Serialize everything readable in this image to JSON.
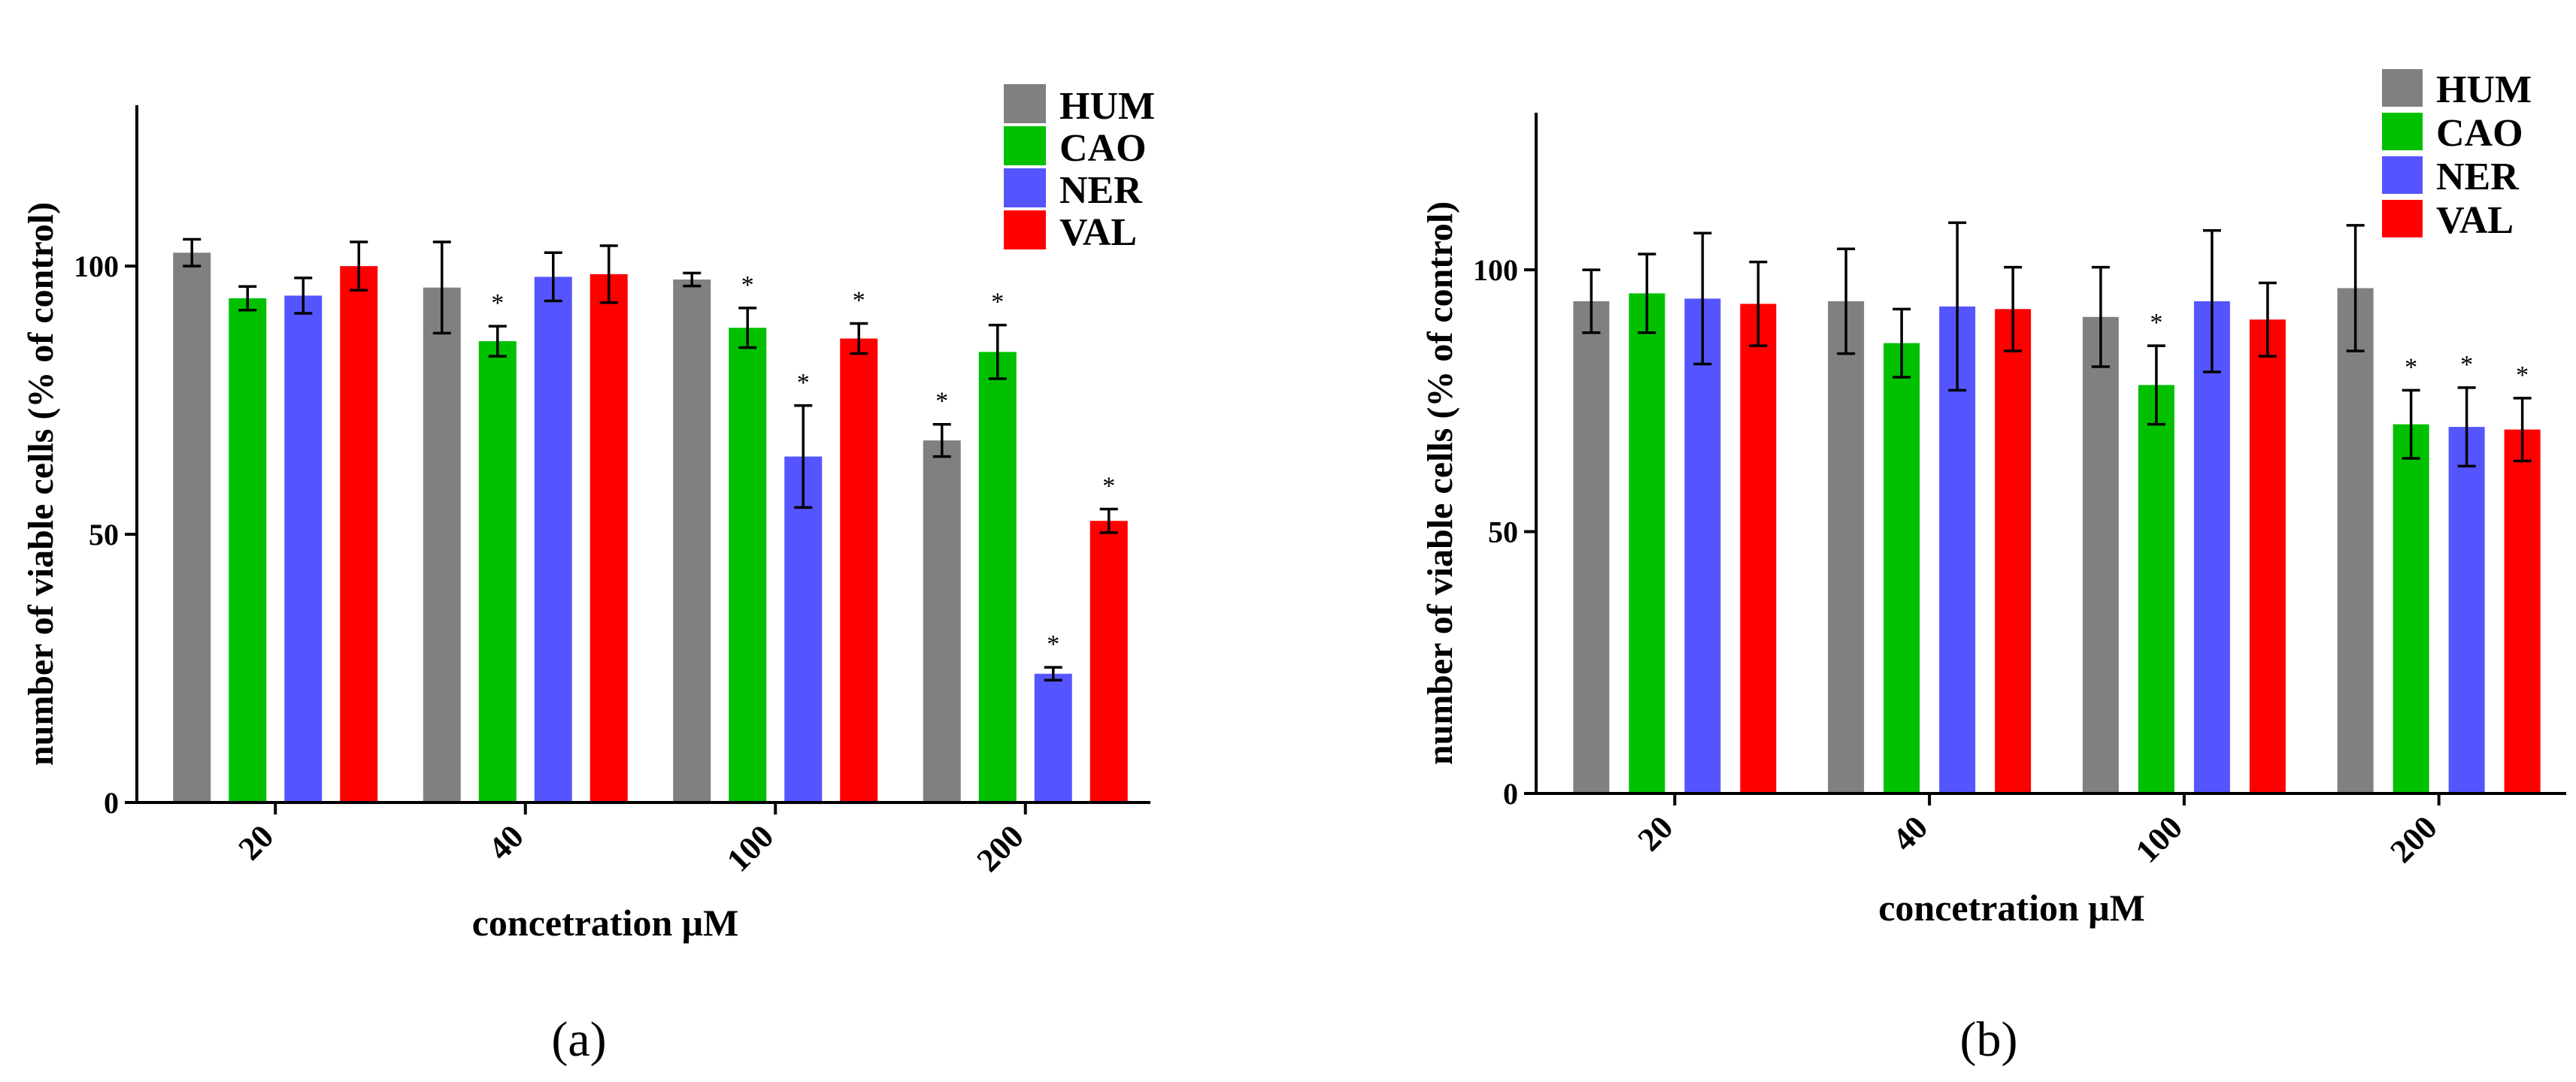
{
  "figure": {
    "colors": {
      "HUM": "#808080",
      "CAO": "#00c000",
      "NER": "#5555ff",
      "VAL": "#ff0000",
      "axis": "#000000"
    }
  },
  "chart_data": [
    {
      "panel_label": "(a)",
      "type": "bar",
      "xlabel": "concetration μM",
      "ylabel": "number of viable cells (% of control)",
      "ylim": [
        0,
        130
      ],
      "yticks": [
        0,
        50,
        100
      ],
      "categories": [
        "20",
        "40",
        "100",
        "200"
      ],
      "legend": [
        "HUM",
        "CAO",
        "NER",
        "VAL"
      ],
      "legend_position": "top-right",
      "series": [
        {
          "name": "HUM",
          "values": [
            102.5,
            96,
            97.5,
            67.5
          ],
          "errors": [
            2.5,
            8.5,
            1.2,
            3
          ],
          "significant": [
            false,
            false,
            false,
            true
          ]
        },
        {
          "name": "CAO",
          "values": [
            94,
            86,
            88.5,
            84
          ],
          "errors": [
            2.2,
            2.8,
            3.7,
            5
          ],
          "significant": [
            false,
            true,
            true,
            true
          ]
        },
        {
          "name": "NER",
          "values": [
            94.5,
            98,
            64.5,
            24
          ],
          "errors": [
            3.3,
            4.5,
            9.5,
            1.2
          ],
          "significant": [
            false,
            false,
            true,
            true
          ]
        },
        {
          "name": "VAL",
          "values": [
            100,
            98.5,
            86.5,
            52.5
          ],
          "errors": [
            4.5,
            5.3,
            2.8,
            2.2
          ],
          "significant": [
            false,
            false,
            true,
            true
          ]
        }
      ]
    },
    {
      "panel_label": "(b)",
      "type": "bar",
      "xlabel": "concetration μM",
      "ylabel": "number of viable cells (% of control)",
      "ylim": [
        0,
        130
      ],
      "yticks": [
        0,
        50,
        100
      ],
      "categories": [
        "20",
        "40",
        "100",
        "200"
      ],
      "legend": [
        "HUM",
        "CAO",
        "NER",
        "VAL"
      ],
      "legend_position": "top-right",
      "series": [
        {
          "name": "HUM",
          "values": [
            94,
            94,
            91,
            96.5
          ],
          "errors": [
            6,
            10,
            9.5,
            12
          ],
          "significant": [
            false,
            false,
            false,
            false
          ]
        },
        {
          "name": "CAO",
          "values": [
            95.5,
            86,
            78,
            70.5
          ],
          "errors": [
            7.5,
            6.5,
            7.5,
            6.5
          ],
          "significant": [
            false,
            false,
            true,
            true
          ]
        },
        {
          "name": "NER",
          "values": [
            94.5,
            93,
            94,
            70
          ],
          "errors": [
            12.5,
            16,
            13.5,
            7.5
          ],
          "significant": [
            false,
            false,
            false,
            true
          ]
        },
        {
          "name": "VAL",
          "values": [
            93.5,
            92.5,
            90.5,
            69.5
          ],
          "errors": [
            8,
            8,
            7,
            6
          ],
          "significant": [
            false,
            false,
            false,
            true
          ]
        }
      ]
    }
  ]
}
